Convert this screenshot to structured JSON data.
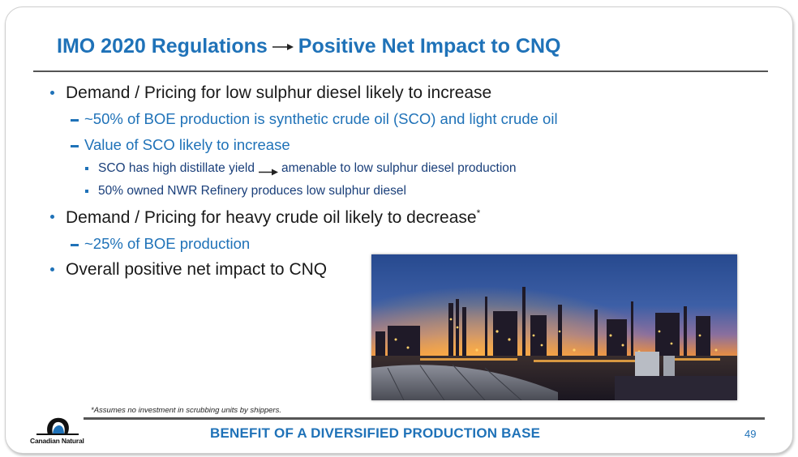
{
  "slide": {
    "title_part1": "IMO 2020 Regulations",
    "title_part2": "Positive Net Impact to CNQ",
    "bullets": [
      {
        "level": 1,
        "text": "Demand / Pricing for low sulphur diesel likely to increase"
      },
      {
        "level": 2,
        "text": "~50% of BOE production is synthetic crude oil (SCO) and light crude oil"
      },
      {
        "level": 2,
        "text": "Value of SCO likely to increase"
      },
      {
        "level": 3,
        "text_before": "SCO has high distillate yield",
        "text_after": "amenable to low sulphur diesel production"
      },
      {
        "level": 3,
        "text": "50% owned NWR Refinery produces low sulphur diesel"
      },
      {
        "level": 1,
        "text": "Demand / Pricing for heavy crude oil likely to decrease",
        "superscript": "*"
      },
      {
        "level": 2,
        "text": "~25% of BOE production"
      },
      {
        "level": 1,
        "text": "Overall positive net impact to CNQ"
      }
    ],
    "footnote": "*Assumes no investment in scrubbing units by shippers.",
    "footer": "BENEFIT OF A DIVERSIFIED PRODUCTION BASE",
    "page_number": "49",
    "logo_text": "Canadian Natural"
  },
  "icons": {
    "title_arrow": "right-arrow-icon",
    "inline_arrow": "right-arrow-icon",
    "logo": "canadian-natural-logo-icon"
  },
  "colors": {
    "accent_blue": "#1f72b8",
    "text_dark": "#1a1a1a",
    "rule_gray": "#555555"
  }
}
